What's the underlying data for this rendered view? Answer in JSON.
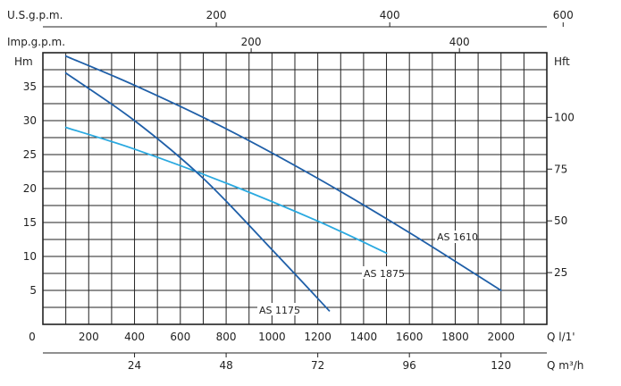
{
  "chart_data": {
    "type": "line",
    "x_unit_label": "Q l/1'",
    "xlim": [
      0,
      2200
    ],
    "x_ticks": [
      0,
      200,
      400,
      600,
      800,
      1000,
      1200,
      1400,
      1600,
      1800,
      2000
    ],
    "y_left_label": "Hm",
    "ylim": [
      0,
      40
    ],
    "y_left_ticks": [
      5,
      10,
      15,
      20,
      25,
      30,
      35
    ],
    "y_right_label": "Hft",
    "y_right_ticks": [
      25,
      50,
      75,
      100
    ],
    "top_axis_usgpm": {
      "label": "U.S.g.p.m.",
      "ticks": [
        200,
        400,
        600
      ]
    },
    "top_axis_impgpm": {
      "label": "Imp.g.p.m.",
      "ticks": [
        200,
        400
      ]
    },
    "bottom_axis_m3h": {
      "label": "Q m³/h",
      "ticks": [
        24,
        48,
        72,
        96,
        120
      ]
    },
    "grid": true,
    "series": [
      {
        "name": "AS 1610",
        "color": "#1f5fa8",
        "x": [
          100,
          400,
          800,
          1200,
          1600,
          2000
        ],
        "y": [
          39.5,
          35.2,
          28.8,
          21.5,
          13.5,
          5.0
        ]
      },
      {
        "name": "AS 1875",
        "color": "#2aa9e0",
        "x": [
          100,
          400,
          800,
          1200,
          1500
        ],
        "y": [
          29.0,
          25.8,
          20.8,
          15.2,
          10.5
        ]
      },
      {
        "name": "AS 1175",
        "color": "#1f5fa8",
        "x": [
          100,
          400,
          700,
          1000,
          1250
        ],
        "y": [
          37.0,
          30.0,
          21.5,
          11.0,
          2.0
        ]
      }
    ],
    "curve_labels": [
      {
        "series": "AS 1610",
        "text": "AS 1610"
      },
      {
        "series": "AS 1875",
        "text": "AS 1875"
      },
      {
        "series": "AS 1175",
        "text": "AS 1175"
      }
    ]
  }
}
